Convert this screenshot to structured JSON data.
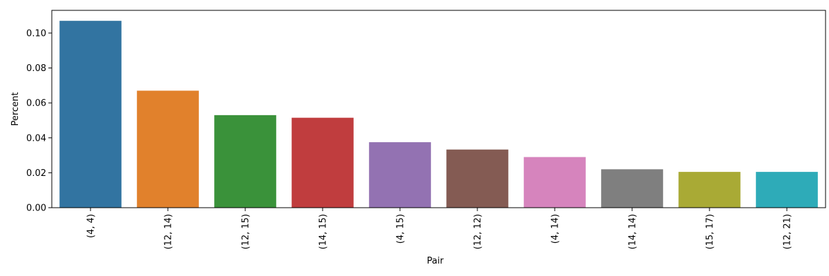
{
  "chart_data": {
    "type": "bar",
    "categories": [
      "(4, 4)",
      "(12, 14)",
      "(12, 15)",
      "(14, 15)",
      "(4, 15)",
      "(12, 12)",
      "(4, 14)",
      "(14, 14)",
      "(15, 17)",
      "(12, 21)"
    ],
    "values": [
      0.107,
      0.067,
      0.053,
      0.0515,
      0.0375,
      0.0333,
      0.029,
      0.022,
      0.0205,
      0.0205
    ],
    "colors": [
      "#3274a1",
      "#e1812c",
      "#3a923a",
      "#c03d3e",
      "#9372b2",
      "#845b53",
      "#d684bd",
      "#7f7f7f",
      "#a9aa35",
      "#2eabb8"
    ],
    "xlabel": "Pair",
    "ylabel": "Percent",
    "ylim": [
      0,
      0.113
    ],
    "yticks": [
      0.0,
      0.02,
      0.04,
      0.06,
      0.08,
      0.1
    ],
    "ytick_labels": [
      "0.00",
      "0.02",
      "0.04",
      "0.06",
      "0.08",
      "0.10"
    ],
    "grid": false,
    "legend": "none"
  }
}
